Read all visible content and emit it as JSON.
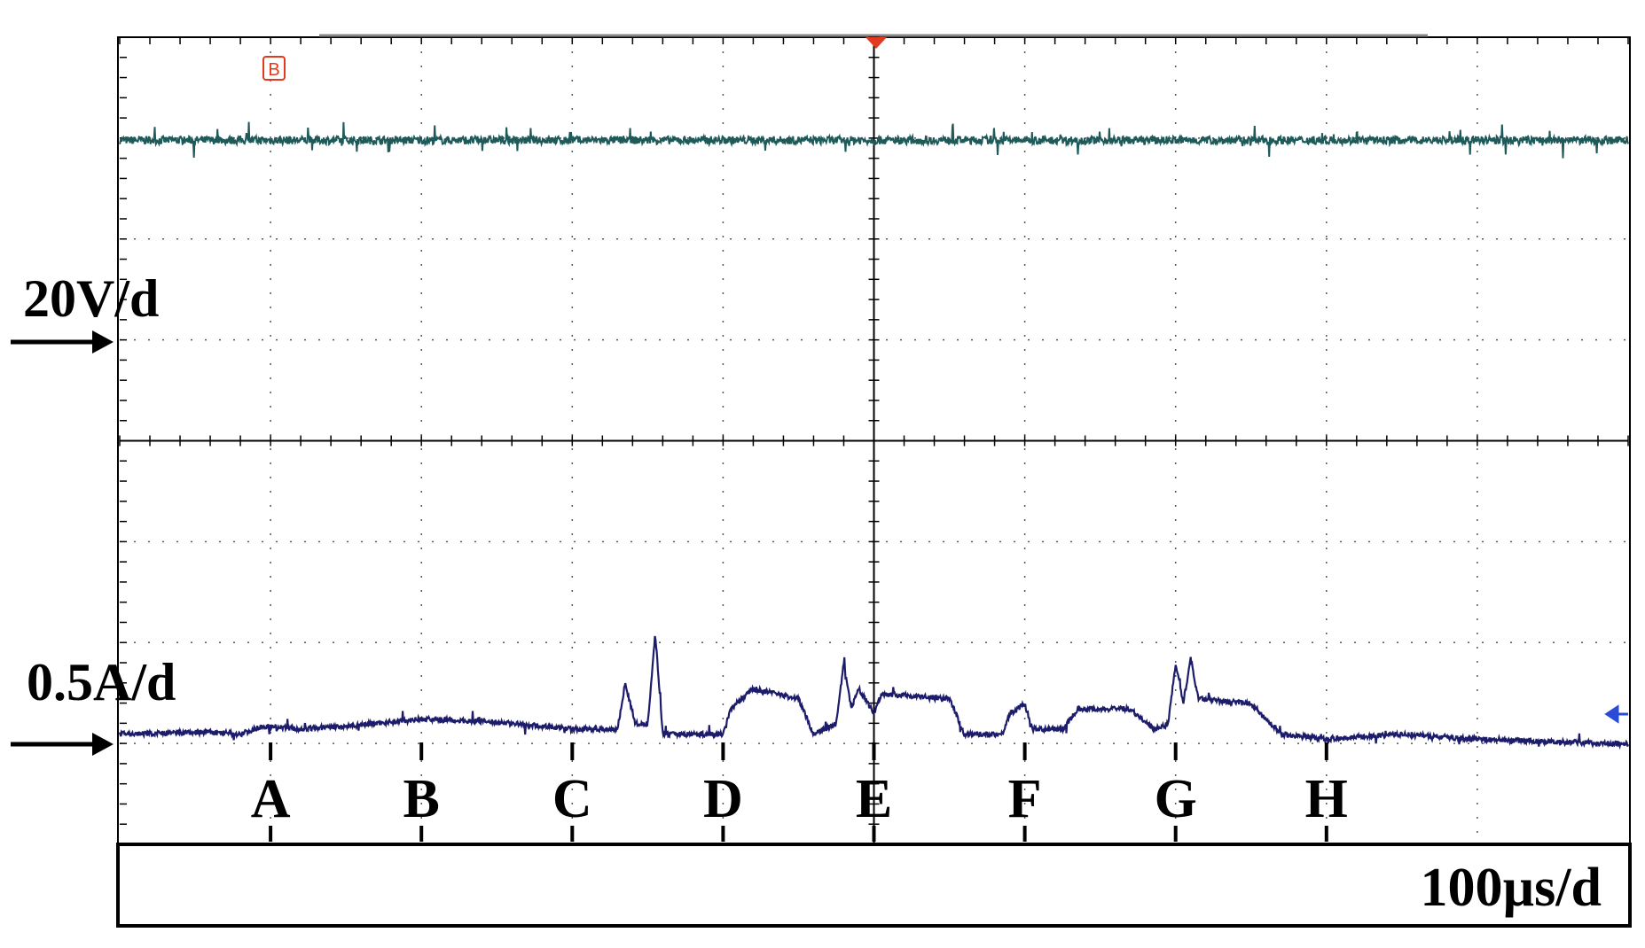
{
  "chart_data": {
    "type": "line",
    "title": "",
    "xlabel": "",
    "ylabel": "",
    "grid": true,
    "x_divisions": 10,
    "y_divisions": 8,
    "timebase": "100µs/d",
    "channels": [
      {
        "name": "",
        "scale": "20V/d",
        "color": "#1f5a5a",
        "level_div_above_marker": 2.0
      },
      {
        "name": "",
        "scale": "0.5A/d",
        "color": "#1c1c6b",
        "level_div_above_marker": 0.15
      }
    ],
    "markers": [
      {
        "label": "A",
        "x_div": 1.0
      },
      {
        "label": "B",
        "x_div": 2.0
      },
      {
        "label": "C",
        "x_div": 3.0
      },
      {
        "label": "D",
        "x_div": 4.0
      },
      {
        "label": "E",
        "x_div": 5.0
      },
      {
        "label": "F",
        "x_div": 6.0
      },
      {
        "label": "G",
        "x_div": 7.0
      },
      {
        "label": "H",
        "x_div": 8.0
      }
    ],
    "voltage_trace_div": [
      [
        0.0,
        2.0
      ],
      [
        10.0,
        2.0
      ]
    ],
    "current_trace_div": [
      [
        0.0,
        0.1
      ],
      [
        0.6,
        0.12
      ],
      [
        0.8,
        0.1
      ],
      [
        0.95,
        0.18
      ],
      [
        1.2,
        0.15
      ],
      [
        1.5,
        0.18
      ],
      [
        2.0,
        0.25
      ],
      [
        2.5,
        0.22
      ],
      [
        3.0,
        0.15
      ],
      [
        3.3,
        0.15
      ],
      [
        3.35,
        0.6
      ],
      [
        3.42,
        0.2
      ],
      [
        3.5,
        0.2
      ],
      [
        3.55,
        1.1
      ],
      [
        3.6,
        0.1
      ],
      [
        4.0,
        0.1
      ],
      [
        4.05,
        0.35
      ],
      [
        4.2,
        0.55
      ],
      [
        4.5,
        0.45
      ],
      [
        4.6,
        0.1
      ],
      [
        4.75,
        0.2
      ],
      [
        4.8,
        0.8
      ],
      [
        4.85,
        0.35
      ],
      [
        4.9,
        0.55
      ],
      [
        5.0,
        0.3
      ],
      [
        5.05,
        0.5
      ],
      [
        5.5,
        0.45
      ],
      [
        5.6,
        0.1
      ],
      [
        5.85,
        0.1
      ],
      [
        5.9,
        0.3
      ],
      [
        6.0,
        0.4
      ],
      [
        6.05,
        0.15
      ],
      [
        6.25,
        0.15
      ],
      [
        6.35,
        0.35
      ],
      [
        6.7,
        0.35
      ],
      [
        6.85,
        0.15
      ],
      [
        6.95,
        0.2
      ],
      [
        7.0,
        0.8
      ],
      [
        7.05,
        0.4
      ],
      [
        7.1,
        0.85
      ],
      [
        7.15,
        0.45
      ],
      [
        7.5,
        0.4
      ],
      [
        7.7,
        0.1
      ],
      [
        8.0,
        0.05
      ],
      [
        8.5,
        0.1
      ],
      [
        9.0,
        0.05
      ],
      [
        10.0,
        0.0
      ]
    ]
  }
}
